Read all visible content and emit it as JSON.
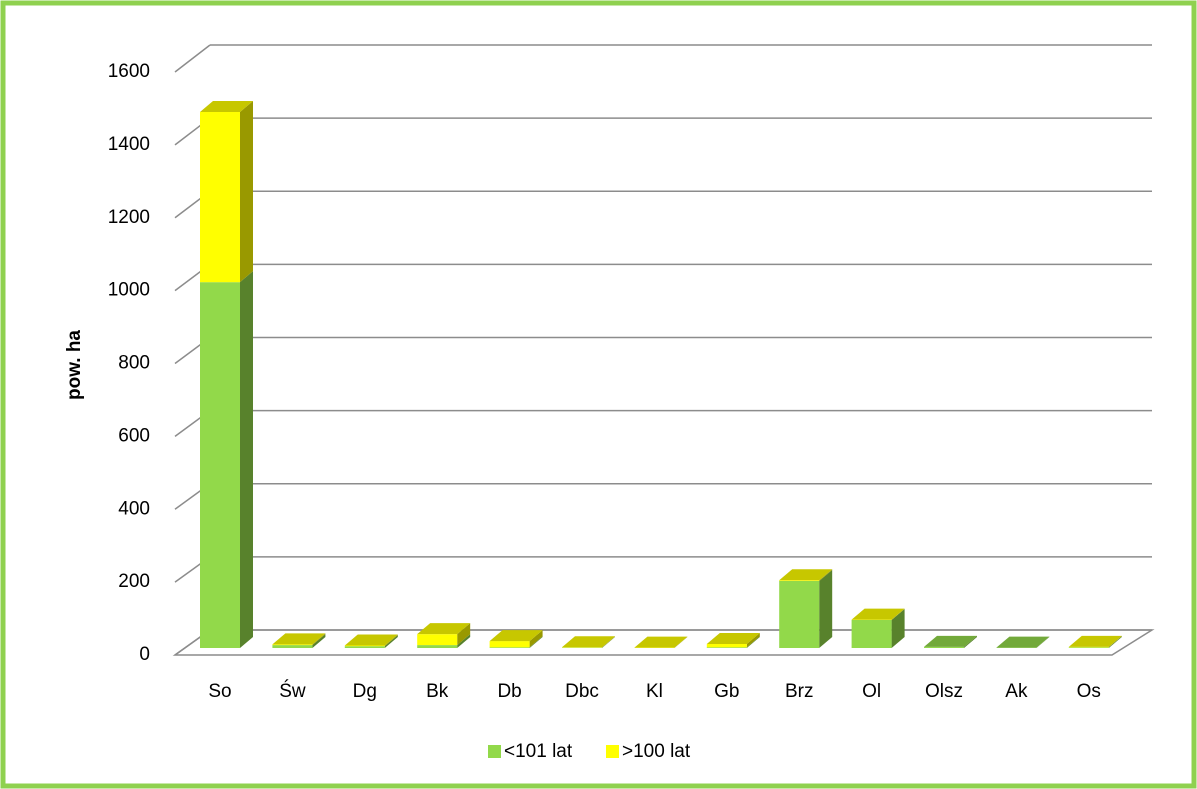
{
  "chart_data": {
    "type": "bar3d_stacked",
    "ylabel": "pow. ha",
    "categories": [
      "So",
      "Św",
      "Dg",
      "Bk",
      "Db",
      "Dbc",
      "Kl",
      "Gb",
      "Brz",
      "Ol",
      "Olsz",
      "Ak",
      "Os"
    ],
    "series": [
      {
        "name": "<101 lat",
        "color": "#92d94a",
        "values": [
          1004,
          8,
          5,
          8,
          2,
          1,
          0,
          2,
          184,
          77,
          3,
          1,
          2
        ]
      },
      {
        "name": ">100 lat",
        "color": "#ffff00",
        "values": [
          467,
          2,
          2,
          30,
          17,
          1,
          1,
          9,
          2,
          1,
          0,
          0,
          1
        ]
      }
    ],
    "ylim": [
      0,
      1600
    ],
    "yticks": [
      0,
      200,
      400,
      600,
      800,
      1000,
      1200,
      1400,
      1600
    ],
    "grid": true,
    "legend": "bottom"
  }
}
